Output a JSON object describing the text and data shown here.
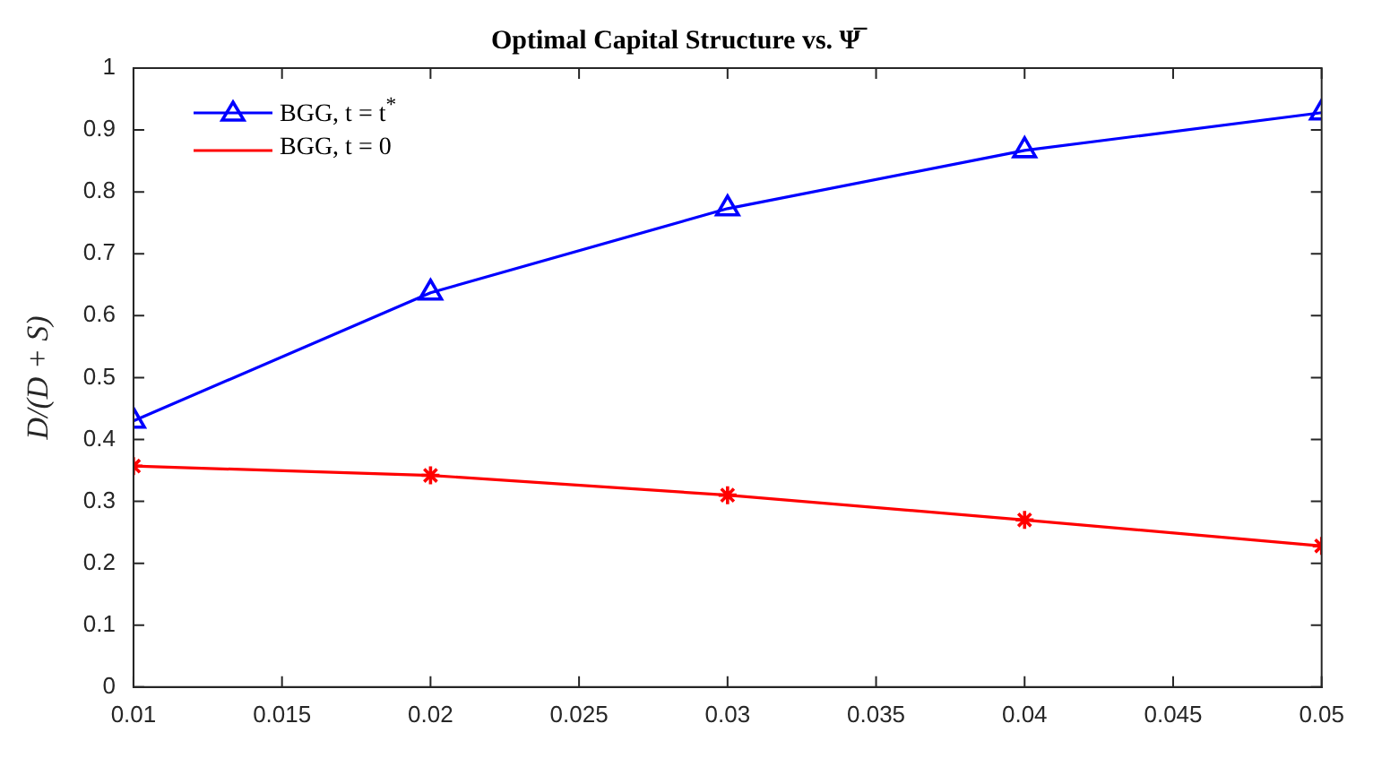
{
  "chart_data": {
    "type": "line",
    "title": "Optimal Capital Structure vs. Ψ̅",
    "ylabel": "D/(D + S)",
    "x": [
      0.01,
      0.02,
      0.03,
      0.04,
      0.05
    ],
    "series": [
      {
        "name": "BGG, t = t$^{*}$",
        "color": "#0000ff",
        "marker": "triangle",
        "values": [
          0.43,
          0.637,
          0.773,
          0.867,
          0.928
        ]
      },
      {
        "name": "BGG, t = 0",
        "color": "#ff0000",
        "marker": "cross",
        "values": [
          0.357,
          0.342,
          0.31,
          0.27,
          0.228
        ]
      }
    ],
    "xlim": [
      0.01,
      0.05
    ],
    "xticks": [
      0.01,
      0.015,
      0.02,
      0.025,
      0.03,
      0.035,
      0.04,
      0.045,
      0.05
    ],
    "ylim": [
      0,
      1
    ],
    "yticks": [
      0,
      0.1,
      0.2,
      0.3,
      0.4,
      0.5,
      0.6,
      0.7,
      0.8,
      0.9,
      1
    ],
    "grid": false,
    "legend": "top left",
    "line_style": "solid"
  }
}
